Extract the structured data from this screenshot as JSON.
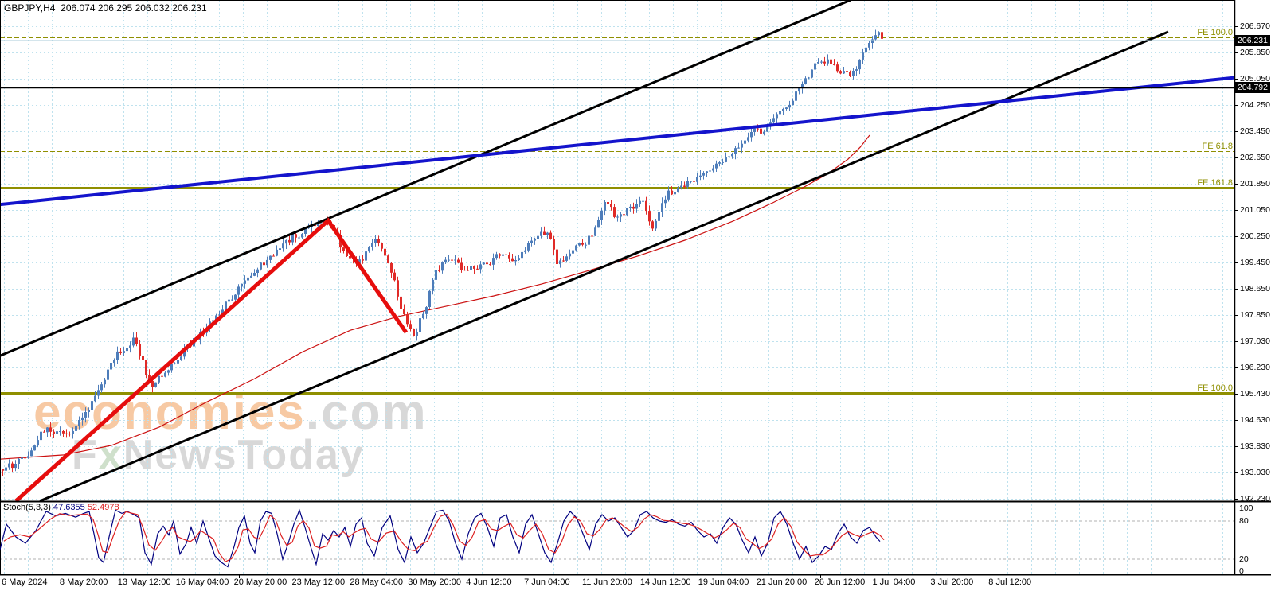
{
  "header": {
    "title_text": "GBPJPY,H4  206.074 206.295 206.032 206.231"
  },
  "watermark": {
    "economies": "economies",
    "dotcom": ".com",
    "line2_f": "F",
    "line2_x": "x",
    "line2_rest": "NewsToday"
  },
  "price_axis": {
    "ticks": [
      "206.670",
      "205.850",
      "205.050",
      "204.250",
      "203.450",
      "202.650",
      "201.850",
      "201.050",
      "200.250",
      "199.450",
      "198.650",
      "197.850",
      "197.030",
      "196.230",
      "195.430",
      "194.630",
      "193.830",
      "193.030",
      "192.230"
    ],
    "badge_current": "206.231",
    "badge_level": "204.792"
  },
  "time_axis": {
    "labels": [
      "6 May 2024",
      "8 May 20:00",
      "13 May 12:00",
      "16 May 04:00",
      "20 May 20:00",
      "23 May 12:00",
      "28 May 04:00",
      "30 May 20:00",
      "4 Jun 12:00",
      "7 Jun 04:00",
      "11 Jun 20:00",
      "14 Jun 12:00",
      "19 Jun 04:00",
      "21 Jun 20:00",
      "26 Jun 12:00",
      "1 Jul 04:00",
      "3 Jul 20:00",
      "8 Jul 12:00"
    ]
  },
  "chart_data": {
    "type": "candlestick",
    "symbol": "GBPJPY",
    "timeframe": "H4",
    "ohlc_display": {
      "open": 206.074,
      "high": 206.295,
      "low": 206.032,
      "close": 206.231
    },
    "y_axis": {
      "price_top": 206.67,
      "price_bottom": 192.23,
      "ticks_numeric": [
        206.67,
        205.85,
        205.05,
        204.25,
        203.45,
        202.65,
        201.85,
        201.05,
        200.25,
        199.45,
        198.65,
        197.85,
        197.03,
        196.23,
        195.43,
        194.63,
        193.83,
        193.03,
        192.23
      ]
    },
    "current_price": 206.231,
    "horizontal_level": 204.792,
    "fib_levels": [
      {
        "label": "FE 100.0",
        "price": 206.33,
        "style": "dashed"
      },
      {
        "label": "FE 61.8",
        "price": 202.85,
        "style": "dashed"
      },
      {
        "label": "FE 161.8",
        "price": 201.73,
        "style": "solid"
      },
      {
        "label": "FE 100.0",
        "price": 195.46,
        "style": "solid"
      }
    ],
    "trendlines": {
      "blue": [
        [
          0,
          201.22
        ],
        [
          1550,
          205.1
        ]
      ],
      "black_upper": [
        [
          0,
          196.6
        ],
        [
          1068,
          207.47
        ]
      ],
      "black_lower": [
        [
          50,
          192.16
        ],
        [
          1467,
          206.5
        ]
      ]
    },
    "zigzag": [
      [
        20,
        192.16
      ],
      [
        412,
        200.73
      ],
      [
        510,
        197.31
      ]
    ],
    "price_path": [
      [
        2,
        193.13
      ],
      [
        30,
        193.49
      ],
      [
        55,
        194.34
      ],
      [
        85,
        194.1
      ],
      [
        115,
        195.19
      ],
      [
        145,
        196.65
      ],
      [
        168,
        197.14
      ],
      [
        188,
        195.68
      ],
      [
        210,
        196.24
      ],
      [
        240,
        197.02
      ],
      [
        270,
        197.8
      ],
      [
        300,
        198.67
      ],
      [
        330,
        199.45
      ],
      [
        360,
        200.13
      ],
      [
        395,
        200.59
      ],
      [
        412,
        200.71
      ],
      [
        430,
        199.81
      ],
      [
        450,
        199.45
      ],
      [
        468,
        200.18
      ],
      [
        487,
        199.45
      ],
      [
        502,
        198.11
      ],
      [
        517,
        197.14
      ],
      [
        530,
        197.87
      ],
      [
        545,
        199.08
      ],
      [
        560,
        199.64
      ],
      [
        578,
        199.33
      ],
      [
        595,
        199.21
      ],
      [
        612,
        199.45
      ],
      [
        628,
        199.74
      ],
      [
        645,
        199.5
      ],
      [
        660,
        199.89
      ],
      [
        675,
        200.3
      ],
      [
        688,
        200.47
      ],
      [
        698,
        199.33
      ],
      [
        712,
        199.74
      ],
      [
        728,
        199.98
      ],
      [
        744,
        200.3
      ],
      [
        758,
        201.35
      ],
      [
        772,
        200.86
      ],
      [
        788,
        201.03
      ],
      [
        805,
        201.35
      ],
      [
        818,
        200.47
      ],
      [
        832,
        201.44
      ],
      [
        848,
        201.71
      ],
      [
        865,
        201.93
      ],
      [
        882,
        202.17
      ],
      [
        900,
        202.49
      ],
      [
        918,
        202.81
      ],
      [
        934,
        203.15
      ],
      [
        945,
        203.54
      ],
      [
        957,
        203.34
      ],
      [
        970,
        203.78
      ],
      [
        985,
        204.19
      ],
      [
        1000,
        204.68
      ],
      [
        1014,
        205.16
      ],
      [
        1028,
        205.65
      ],
      [
        1042,
        205.53
      ],
      [
        1056,
        205.28
      ],
      [
        1068,
        205.16
      ],
      [
        1080,
        205.72
      ],
      [
        1092,
        206.14
      ],
      [
        1100,
        206.45
      ],
      [
        1108,
        206.23
      ]
    ],
    "moving_average": [
      [
        0,
        193.44
      ],
      [
        80,
        193.57
      ],
      [
        140,
        193.86
      ],
      [
        200,
        194.42
      ],
      [
        260,
        195.19
      ],
      [
        320,
        195.9
      ],
      [
        380,
        196.72
      ],
      [
        440,
        197.38
      ],
      [
        500,
        197.8
      ],
      [
        560,
        198.11
      ],
      [
        620,
        198.43
      ],
      [
        680,
        198.79
      ],
      [
        740,
        199.21
      ],
      [
        800,
        199.64
      ],
      [
        860,
        200.13
      ],
      [
        920,
        200.71
      ],
      [
        970,
        201.27
      ],
      [
        1010,
        201.76
      ],
      [
        1040,
        202.17
      ],
      [
        1065,
        202.61
      ],
      [
        1080,
        202.97
      ],
      [
        1092,
        203.34
      ]
    ],
    "stochastic": {
      "name": "Stoch(5,3,3)",
      "k_display": "47.6355",
      "d_display": "52.4978",
      "k_value": 47.6355,
      "d_value": 52.4978,
      "scale": [
        "100",
        "80",
        "20",
        "0"
      ],
      "k_points": [
        [
          0,
          35
        ],
        [
          8,
          75
        ],
        [
          20,
          55
        ],
        [
          32,
          45
        ],
        [
          45,
          65
        ],
        [
          58,
          95
        ],
        [
          70,
          88
        ],
        [
          82,
          92
        ],
        [
          95,
          86
        ],
        [
          105,
          92
        ],
        [
          112,
          95
        ],
        [
          118,
          60
        ],
        [
          124,
          22
        ],
        [
          130,
          15
        ],
        [
          137,
          55
        ],
        [
          145,
          97
        ],
        [
          153,
          92
        ],
        [
          160,
          95
        ],
        [
          168,
          90
        ],
        [
          175,
          85
        ],
        [
          182,
          30
        ],
        [
          190,
          12
        ],
        [
          198,
          60
        ],
        [
          205,
          72
        ],
        [
          212,
          58
        ],
        [
          218,
          80
        ],
        [
          226,
          28
        ],
        [
          234,
          45
        ],
        [
          240,
          70
        ],
        [
          247,
          45
        ],
        [
          255,
          80
        ],
        [
          263,
          50
        ],
        [
          270,
          25
        ],
        [
          278,
          15
        ],
        [
          286,
          8
        ],
        [
          294,
          40
        ],
        [
          300,
          70
        ],
        [
          307,
          88
        ],
        [
          314,
          45
        ],
        [
          320,
          30
        ],
        [
          327,
          80
        ],
        [
          334,
          95
        ],
        [
          341,
          92
        ],
        [
          348,
          60
        ],
        [
          355,
          20
        ],
        [
          362,
          45
        ],
        [
          369,
          75
        ],
        [
          376,
          97
        ],
        [
          383,
          70
        ],
        [
          390,
          40
        ],
        [
          397,
          12
        ],
        [
          405,
          60
        ],
        [
          412,
          50
        ],
        [
          419,
          65
        ],
        [
          426,
          55
        ],
        [
          433,
          70
        ],
        [
          440,
          40
        ],
        [
          447,
          75
        ],
        [
          454,
          85
        ],
        [
          461,
          45
        ],
        [
          470,
          25
        ],
        [
          480,
          70
        ],
        [
          490,
          88
        ],
        [
          500,
          35
        ],
        [
          508,
          15
        ],
        [
          516,
          55
        ],
        [
          524,
          30
        ],
        [
          532,
          45
        ],
        [
          540,
          70
        ],
        [
          548,
          95
        ],
        [
          556,
          97
        ],
        [
          564,
          80
        ],
        [
          572,
          45
        ],
        [
          580,
          20
        ],
        [
          588,
          60
        ],
        [
          596,
          85
        ],
        [
          604,
          92
        ],
        [
          612,
          70
        ],
        [
          620,
          40
        ],
        [
          628,
          85
        ],
        [
          636,
          90
        ],
        [
          644,
          55
        ],
        [
          652,
          30
        ],
        [
          660,
          75
        ],
        [
          668,
          90
        ],
        [
          676,
          60
        ],
        [
          684,
          30
        ],
        [
          692,
          15
        ],
        [
          700,
          45
        ],
        [
          708,
          80
        ],
        [
          716,
          95
        ],
        [
          724,
          85
        ],
        [
          732,
          60
        ],
        [
          740,
          35
        ],
        [
          748,
          75
        ],
        [
          756,
          90
        ],
        [
          764,
          80
        ],
        [
          772,
          85
        ],
        [
          780,
          70
        ],
        [
          788,
          55
        ],
        [
          796,
          65
        ],
        [
          804,
          90
        ],
        [
          812,
          95
        ],
        [
          820,
          85
        ],
        [
          828,
          80
        ],
        [
          836,
          78
        ],
        [
          844,
          82
        ],
        [
          852,
          75
        ],
        [
          860,
          72
        ],
        [
          868,
          78
        ],
        [
          876,
          65
        ],
        [
          884,
          55
        ],
        [
          892,
          60
        ],
        [
          900,
          45
        ],
        [
          908,
          70
        ],
        [
          916,
          85
        ],
        [
          924,
          75
        ],
        [
          932,
          50
        ],
        [
          940,
          30
        ],
        [
          948,
          55
        ],
        [
          956,
          25
        ],
        [
          964,
          45
        ],
        [
          972,
          85
        ],
        [
          980,
          95
        ],
        [
          988,
          75
        ],
        [
          996,
          45
        ],
        [
          1004,
          20
        ],
        [
          1012,
          40
        ],
        [
          1020,
          15
        ],
        [
          1028,
          25
        ],
        [
          1036,
          40
        ],
        [
          1044,
          35
        ],
        [
          1052,
          60
        ],
        [
          1060,
          75
        ],
        [
          1068,
          55
        ],
        [
          1076,
          45
        ],
        [
          1084,
          65
        ],
        [
          1092,
          70
        ],
        [
          1100,
          55
        ],
        [
          1105,
          48
        ]
      ]
    }
  },
  "colors": {
    "background": "#ffffff",
    "grid": "#bfe2ee",
    "grid_gray": "#b0b0b0",
    "bull": "#4e7dba",
    "bear": "#e02b28",
    "trend_blue": "#1414cc",
    "trend_black": "#000000",
    "zigzag_red": "#e60d0d",
    "ma_red": "#cc1111",
    "fib_olive": "#8f8f00",
    "stoch_k": "#000080",
    "stoch_d": "#dd2222",
    "price_line": "#a9cbd8",
    "badge_bg": "#000000",
    "badge_fg": "#ffffff",
    "wm_orange": "#f7c9a3",
    "wm_gray": "#d8d8d8",
    "wm_green": "#cfe0cb"
  }
}
